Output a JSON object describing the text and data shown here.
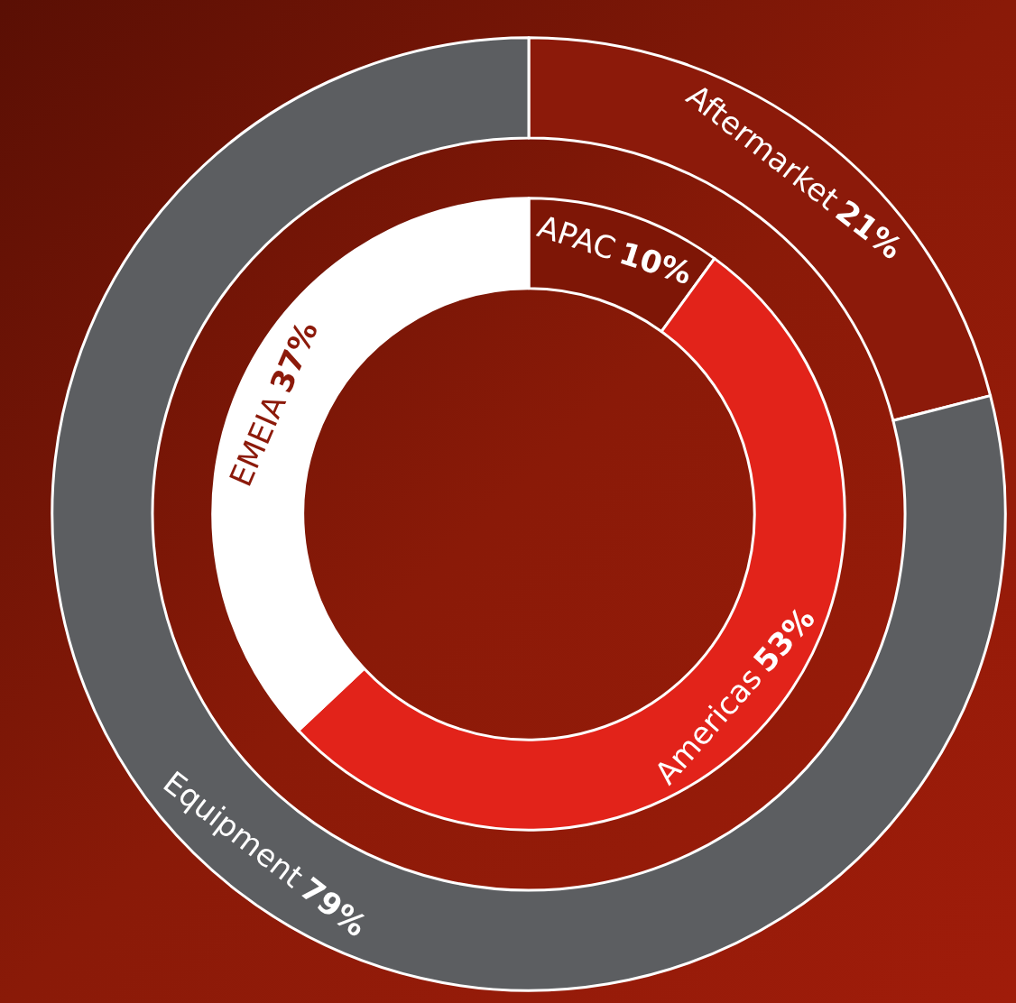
{
  "chart_data": [
    {
      "type": "donut",
      "categories": [
        "Aftermarket",
        "Equipment"
      ],
      "values": [
        21,
        79
      ],
      "value_labels": [
        "21%",
        "79%"
      ],
      "colors": [
        "#8c1a0a",
        "#5c5e61"
      ]
    },
    {
      "type": "donut",
      "categories": [
        "APAC",
        "Americas",
        "EMEIA"
      ],
      "values": [
        10,
        53,
        37
      ],
      "value_labels": [
        "10%",
        "53%",
        "37%"
      ],
      "colors": [
        "#7e1606",
        "#e2231a",
        "#ffffff"
      ]
    }
  ]
}
